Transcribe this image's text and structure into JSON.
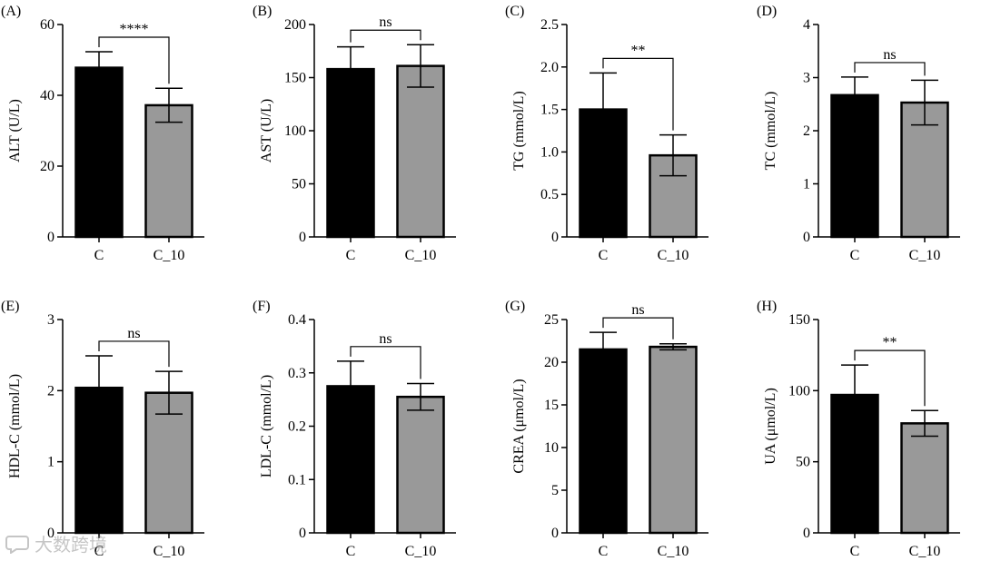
{
  "colors": {
    "bar_c": "#000000",
    "bar_c10": "#999999",
    "axis": "#000000"
  },
  "chart_data": [
    {
      "type": "bar",
      "panel": "(A)",
      "ylabel": "ALT (U/L)",
      "categories": [
        "C",
        "C_10"
      ],
      "values": [
        47.8,
        37.2
      ],
      "errors": [
        4.5,
        4.8
      ],
      "ylim": [
        0,
        60
      ],
      "yticks": [
        "0",
        "20",
        "40",
        "60"
      ],
      "significance": "****"
    },
    {
      "type": "bar",
      "panel": "(B)",
      "ylabel": "AST (U/L)",
      "categories": [
        "C",
        "C_10"
      ],
      "values": [
        158,
        161
      ],
      "errors": [
        21,
        20
      ],
      "ylim": [
        0,
        200
      ],
      "yticks": [
        "0",
        "50",
        "100",
        "150",
        "200"
      ],
      "significance": "ns"
    },
    {
      "type": "bar",
      "panel": "(C)",
      "ylabel": "TG (mmol/L)",
      "categories": [
        "C",
        "C_10"
      ],
      "values": [
        1.5,
        0.96
      ],
      "errors": [
        0.43,
        0.24
      ],
      "ylim": [
        0,
        2.5
      ],
      "yticks": [
        "0",
        "0.5",
        "1.0",
        "1.5",
        "2.0",
        "2.5"
      ],
      "significance": "**"
    },
    {
      "type": "bar",
      "panel": "(D)",
      "ylabel": "TC (mmol/L)",
      "categories": [
        "C",
        "C_10"
      ],
      "values": [
        2.67,
        2.53
      ],
      "errors": [
        0.34,
        0.42
      ],
      "ylim": [
        0,
        4
      ],
      "yticks": [
        "0",
        "1",
        "2",
        "3",
        "4"
      ],
      "significance": "ns"
    },
    {
      "type": "bar",
      "panel": "(E)",
      "ylabel": "HDL-C (mmol/L)",
      "categories": [
        "C",
        "C_10"
      ],
      "values": [
        2.04,
        1.97
      ],
      "errors": [
        0.45,
        0.3
      ],
      "ylim": [
        0,
        3
      ],
      "yticks": [
        "0",
        "1",
        "2",
        "3"
      ],
      "significance": "ns"
    },
    {
      "type": "bar",
      "panel": "(F)",
      "ylabel": "LDL-C (mmol/L)",
      "categories": [
        "C",
        "C_10"
      ],
      "values": [
        0.275,
        0.255
      ],
      "errors": [
        0.047,
        0.025
      ],
      "ylim": [
        0,
        0.4
      ],
      "yticks": [
        "0",
        "0.1",
        "0.2",
        "0.3",
        "0.4"
      ],
      "significance": "ns"
    },
    {
      "type": "bar",
      "panel": "(G)",
      "ylabel": "CREA (μmol/L)",
      "categories": [
        "C",
        "C_10"
      ],
      "values": [
        21.5,
        21.8
      ],
      "errors": [
        2.0,
        0.35
      ],
      "ylim": [
        0,
        25
      ],
      "yticks": [
        "0",
        "5",
        "10",
        "15",
        "20",
        "25"
      ],
      "significance": "ns"
    },
    {
      "type": "bar",
      "panel": "(H)",
      "ylabel": "UA (μmol/L)",
      "categories": [
        "C",
        "C_10"
      ],
      "values": [
        97,
        77
      ],
      "errors": [
        21,
        9
      ],
      "ylim": [
        0,
        150
      ],
      "yticks": [
        "0",
        "50",
        "100",
        "150"
      ],
      "significance": "**"
    }
  ],
  "watermark": {
    "text": "大数跨境",
    "icon": "chat-bubble-icon"
  }
}
